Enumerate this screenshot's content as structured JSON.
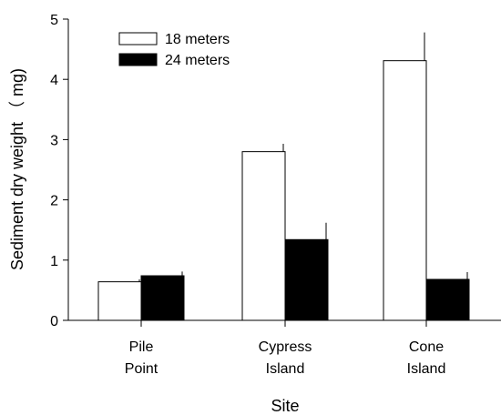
{
  "chart_data": {
    "type": "bar",
    "title": "",
    "xlabel": "Site",
    "ylabel": "Sediment dry weight （ mg)",
    "ylim": [
      0,
      5
    ],
    "yticks": [
      0,
      1,
      2,
      3,
      4,
      5
    ],
    "categories": [
      [
        "Pile",
        "Point"
      ],
      [
        "Cypress",
        "Island"
      ],
      [
        "Cone",
        "Island"
      ]
    ],
    "series": [
      {
        "name": "18 meters",
        "values": [
          0.64,
          2.8,
          4.31
        ],
        "errors": [
          0.04,
          0.13,
          0.47
        ],
        "fill": "#ffffff"
      },
      {
        "name": "24 meters",
        "values": [
          0.74,
          1.34,
          0.68
        ],
        "errors": [
          0.07,
          0.28,
          0.12
        ],
        "fill": "#000000"
      }
    ],
    "legend_position": "top-left",
    "grid": false,
    "error_bars": "upper"
  }
}
